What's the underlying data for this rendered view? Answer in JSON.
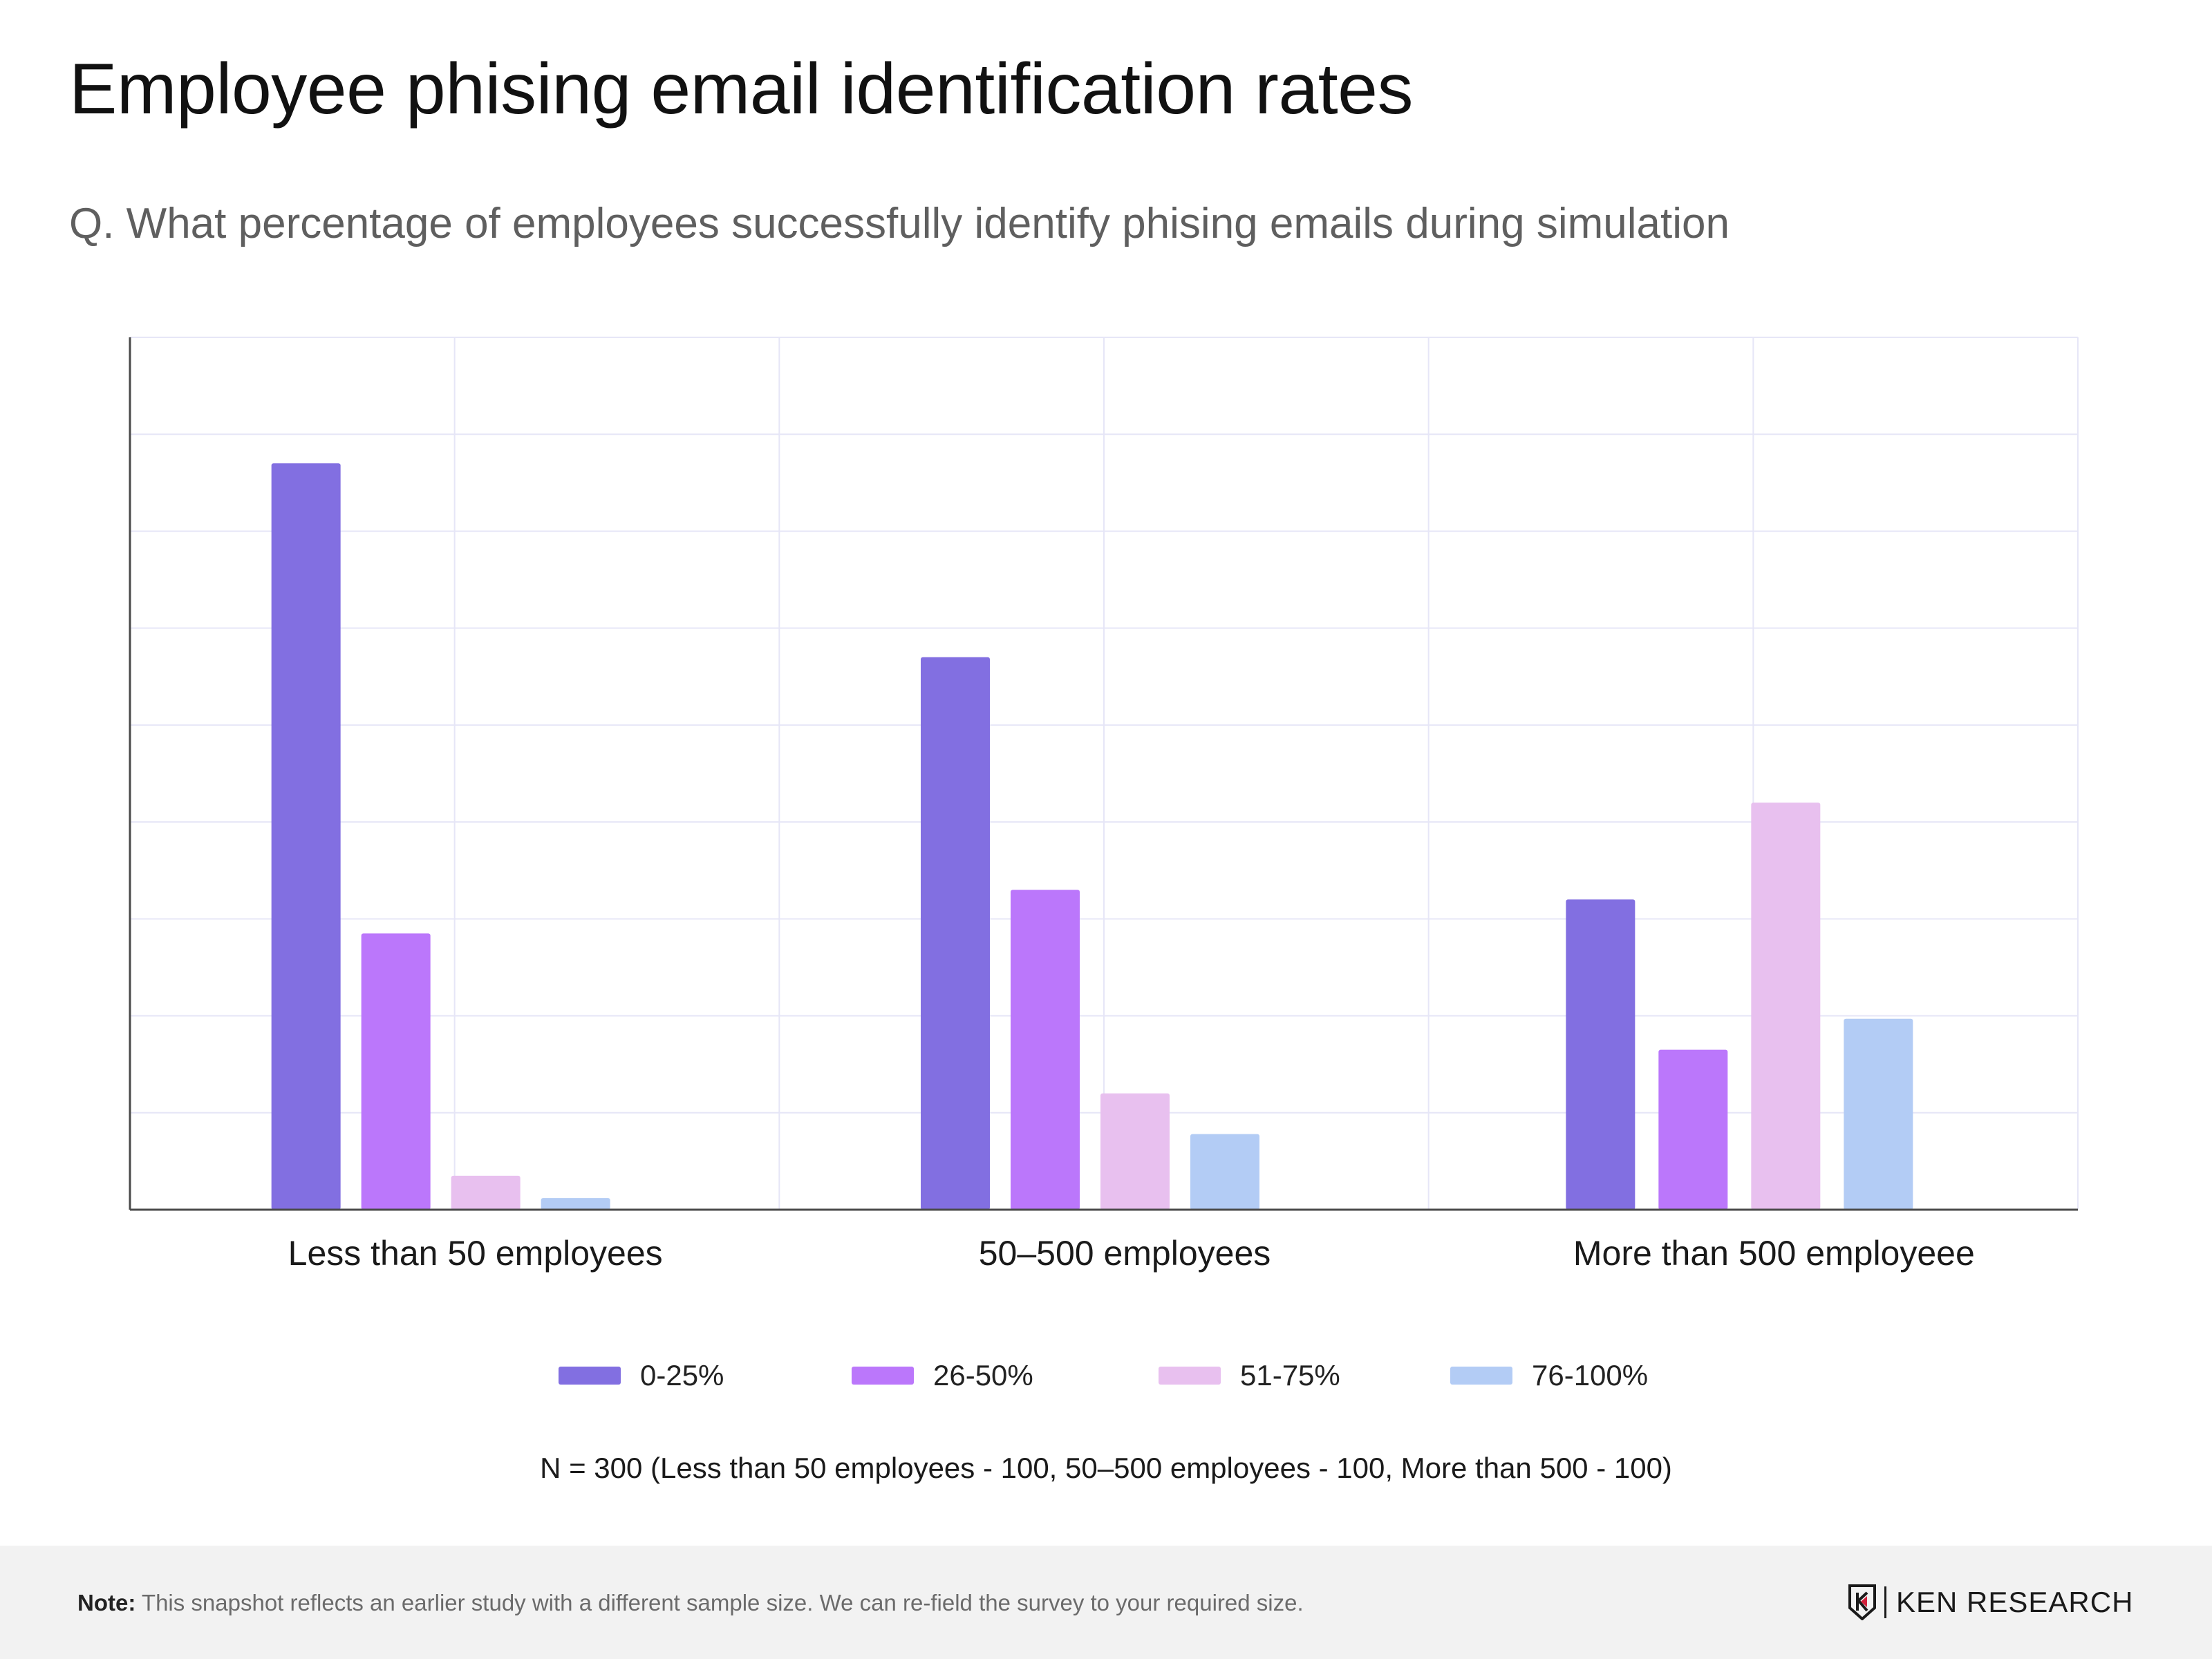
{
  "title": "Employee phising email identification rates",
  "subtitle": "Q. What percentage of employees successfully identify phising emails during simulation",
  "chart_data": {
    "type": "bar",
    "title": "Employee phising email identification rates",
    "categories": [
      "Less than 50 employees",
      "50–500 employees",
      "More than 500  employeee"
    ],
    "series": [
      {
        "name": "0-25%",
        "color": "#826fe1",
        "values": [
          77,
          57,
          32
        ]
      },
      {
        "name": "26-50%",
        "color": "#bb77fb",
        "values": [
          28.5,
          33,
          16.5
        ]
      },
      {
        "name": "51-75%",
        "color": "#e8c0ef",
        "values": [
          3.5,
          12,
          42
        ]
      },
      {
        "name": "76-100%",
        "color": "#b3ccf5",
        "values": [
          1.2,
          7.8,
          19.7
        ]
      }
    ],
    "ylim": [
      0,
      90
    ],
    "grid": true,
    "xlabel": "",
    "ylabel": "",
    "legend_position": "bottom"
  },
  "sample_note": "N = 300 (Less than 50 employees - 100, 50–500 employees - 100, More than 500 - 100)",
  "footer": {
    "note_label": "Note:",
    "note_text": "This snapshot reflects an earlier study with a different sample size. We can re-field the survey to your required size.",
    "brand": "KEN RESEARCH"
  }
}
